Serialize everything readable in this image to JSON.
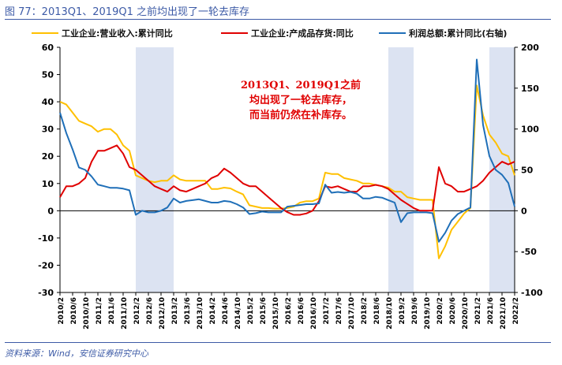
{
  "figure_title": "图 77：2013Q1、2019Q1 之前均出现了一轮去库存",
  "source_note": "资料来源：Wind，安信证券研究中心",
  "colors": {
    "yellow": "#FFC000",
    "red": "#E00000",
    "blue": "#1F6FB8",
    "shade": "#DCE3F2",
    "title": "#3c5aa6"
  },
  "chart_data": {
    "type": "line",
    "annotation": [
      "2013Q1、2019Q1之前",
      "均出现了一轮去库存，",
      "而当前仍然在补库存。"
    ],
    "y_left": {
      "min": -30,
      "max": 60,
      "ticks": [
        "60",
        "50",
        "40",
        "30",
        "20",
        "10",
        "0",
        "-10",
        "-20",
        "-30"
      ]
    },
    "y_right": {
      "min": -100,
      "max": 200,
      "ticks": [
        "200",
        "150",
        "100",
        "50",
        "0",
        "-50",
        "-100"
      ]
    },
    "x_ticks": [
      "2010/2",
      "2010/6",
      "2010/10",
      "2011/2",
      "2011/6",
      "2011/10",
      "2012/2",
      "2012/6",
      "2012/10",
      "2013/2",
      "2013/6",
      "2013/10",
      "2014/2",
      "2014/6",
      "2014/10",
      "2015/2",
      "2015/6",
      "2015/10",
      "2016/2",
      "2016/6",
      "2016/10",
      "2017/2",
      "2017/6",
      "2017/10",
      "2018/2",
      "2018/6",
      "2018/10",
      "2019/2",
      "2019/6",
      "2019/10",
      "2020/2",
      "2020/6",
      "2020/10",
      "2021/2",
      "2021/6",
      "2021/10",
      "2022/2"
    ],
    "shaded_ranges": [
      [
        "2012/2",
        "2013/2"
      ],
      [
        "2018/10",
        "2019/6"
      ],
      [
        "2021/6",
        "2022/2"
      ]
    ],
    "series": [
      {
        "name": "工业企业:营业收入:累计同比",
        "color": "#FFC000",
        "axis": "left",
        "points": [
          [
            "2010/2",
            40
          ],
          [
            "2010/4",
            39
          ],
          [
            "2010/6",
            36
          ],
          [
            "2010/8",
            33
          ],
          [
            "2010/10",
            32
          ],
          [
            "2010/12",
            31
          ],
          [
            "2011/2",
            29
          ],
          [
            "2011/4",
            30
          ],
          [
            "2011/6",
            30
          ],
          [
            "2011/8",
            28
          ],
          [
            "2011/10",
            24
          ],
          [
            "2011/12",
            22
          ],
          [
            "2012/2",
            13
          ],
          [
            "2012/4",
            12
          ],
          [
            "2012/6",
            11
          ],
          [
            "2012/8",
            10.5
          ],
          [
            "2012/10",
            11
          ],
          [
            "2012/12",
            11
          ],
          [
            "2013/2",
            13
          ],
          [
            "2013/4",
            11.5
          ],
          [
            "2013/6",
            11
          ],
          [
            "2013/8",
            11
          ],
          [
            "2013/10",
            11
          ],
          [
            "2013/12",
            11
          ],
          [
            "2014/2",
            8
          ],
          [
            "2014/4",
            8
          ],
          [
            "2014/6",
            8.5
          ],
          [
            "2014/8",
            8.2
          ],
          [
            "2014/10",
            7
          ],
          [
            "2014/12",
            6
          ],
          [
            "2015/2",
            2
          ],
          [
            "2015/4",
            1.5
          ],
          [
            "2015/6",
            1
          ],
          [
            "2015/8",
            1
          ],
          [
            "2015/10",
            0.8
          ],
          [
            "2015/12",
            0.8
          ],
          [
            "2016/2",
            1
          ],
          [
            "2016/4",
            1.5
          ],
          [
            "2016/6",
            3
          ],
          [
            "2016/8",
            3.5
          ],
          [
            "2016/10",
            3.5
          ],
          [
            "2016/12",
            4.5
          ],
          [
            "2017/2",
            14
          ],
          [
            "2017/4",
            13.5
          ],
          [
            "2017/6",
            13.5
          ],
          [
            "2017/8",
            12
          ],
          [
            "2017/10",
            11.5
          ],
          [
            "2017/12",
            11
          ],
          [
            "2018/2",
            10
          ],
          [
            "2018/4",
            10
          ],
          [
            "2018/6",
            9.5
          ],
          [
            "2018/8",
            9
          ],
          [
            "2018/10",
            8.5
          ],
          [
            "2018/12",
            7
          ],
          [
            "2019/2",
            7
          ],
          [
            "2019/4",
            5
          ],
          [
            "2019/6",
            4.5
          ],
          [
            "2019/8",
            4
          ],
          [
            "2019/10",
            4
          ],
          [
            "2019/12",
            4
          ],
          [
            "2020/2",
            -17.5
          ],
          [
            "2020/4",
            -13
          ],
          [
            "2020/6",
            -7
          ],
          [
            "2020/8",
            -4
          ],
          [
            "2020/10",
            -1
          ],
          [
            "2020/12",
            1
          ],
          [
            "2021/2",
            46
          ],
          [
            "2021/4",
            35
          ],
          [
            "2021/6",
            28
          ],
          [
            "2021/8",
            25
          ],
          [
            "2021/10",
            21
          ],
          [
            "2021/12",
            20
          ],
          [
            "2022/2",
            13
          ]
        ]
      },
      {
        "name": "工业企业:产成品存货:同比",
        "color": "#E00000",
        "axis": "left",
        "points": [
          [
            "2010/2",
            5
          ],
          [
            "2010/4",
            9
          ],
          [
            "2010/6",
            9
          ],
          [
            "2010/8",
            10
          ],
          [
            "2010/10",
            12
          ],
          [
            "2010/12",
            18
          ],
          [
            "2011/2",
            22
          ],
          [
            "2011/4",
            22
          ],
          [
            "2011/6",
            23
          ],
          [
            "2011/8",
            24
          ],
          [
            "2011/10",
            21
          ],
          [
            "2011/12",
            16
          ],
          [
            "2012/2",
            15
          ],
          [
            "2012/4",
            13
          ],
          [
            "2012/6",
            11
          ],
          [
            "2012/8",
            9
          ],
          [
            "2012/10",
            8
          ],
          [
            "2012/12",
            7
          ],
          [
            "2013/2",
            9
          ],
          [
            "2013/4",
            7.5
          ],
          [
            "2013/6",
            7
          ],
          [
            "2013/8",
            8
          ],
          [
            "2013/10",
            9
          ],
          [
            "2013/12",
            10
          ],
          [
            "2014/2",
            12
          ],
          [
            "2014/4",
            13
          ],
          [
            "2014/6",
            15.5
          ],
          [
            "2014/8",
            14
          ],
          [
            "2014/10",
            12
          ],
          [
            "2014/12",
            10
          ],
          [
            "2015/2",
            9
          ],
          [
            "2015/4",
            9
          ],
          [
            "2015/6",
            7
          ],
          [
            "2015/8",
            5
          ],
          [
            "2015/10",
            3
          ],
          [
            "2015/12",
            1
          ],
          [
            "2016/2",
            -0.5
          ],
          [
            "2016/4",
            -1.5
          ],
          [
            "2016/6",
            -1.5
          ],
          [
            "2016/8",
            -1
          ],
          [
            "2016/10",
            0
          ],
          [
            "2016/12",
            3.5
          ],
          [
            "2017/2",
            9
          ],
          [
            "2017/4",
            8.5
          ],
          [
            "2017/6",
            9
          ],
          [
            "2017/8",
            8
          ],
          [
            "2017/10",
            7
          ],
          [
            "2017/12",
            7
          ],
          [
            "2018/2",
            9
          ],
          [
            "2018/4",
            9
          ],
          [
            "2018/6",
            9.5
          ],
          [
            "2018/8",
            9
          ],
          [
            "2018/10",
            8
          ],
          [
            "2018/12",
            6
          ],
          [
            "2019/2",
            4
          ],
          [
            "2019/4",
            2.5
          ],
          [
            "2019/6",
            1
          ],
          [
            "2019/8",
            0
          ],
          [
            "2019/10",
            0
          ],
          [
            "2019/12",
            0
          ],
          [
            "2020/2",
            16
          ],
          [
            "2020/4",
            10
          ],
          [
            "2020/6",
            9
          ],
          [
            "2020/8",
            7
          ],
          [
            "2020/10",
            7
          ],
          [
            "2020/12",
            8
          ],
          [
            "2021/2",
            9
          ],
          [
            "2021/4",
            11
          ],
          [
            "2021/6",
            14
          ],
          [
            "2021/8",
            16
          ],
          [
            "2021/10",
            18
          ],
          [
            "2021/12",
            17
          ],
          [
            "2022/2",
            18
          ]
        ]
      },
      {
        "name": "利润总额:累计同比(右轴)",
        "color": "#1F6FB8",
        "axis": "right",
        "points": [
          [
            "2010/2",
            120
          ],
          [
            "2010/4",
            95
          ],
          [
            "2010/6",
            75
          ],
          [
            "2010/8",
            53
          ],
          [
            "2010/10",
            50
          ],
          [
            "2010/12",
            42
          ],
          [
            "2011/2",
            32
          ],
          [
            "2011/4",
            30
          ],
          [
            "2011/6",
            28
          ],
          [
            "2011/8",
            28
          ],
          [
            "2011/10",
            27
          ],
          [
            "2011/12",
            25
          ],
          [
            "2012/2",
            -5
          ],
          [
            "2012/4",
            0
          ],
          [
            "2012/6",
            -2
          ],
          [
            "2012/8",
            -2
          ],
          [
            "2012/10",
            0
          ],
          [
            "2012/12",
            4
          ],
          [
            "2013/2",
            15
          ],
          [
            "2013/4",
            10
          ],
          [
            "2013/6",
            12
          ],
          [
            "2013/8",
            13
          ],
          [
            "2013/10",
            14
          ],
          [
            "2013/12",
            12
          ],
          [
            "2014/2",
            10
          ],
          [
            "2014/4",
            10
          ],
          [
            "2014/6",
            12
          ],
          [
            "2014/8",
            11
          ],
          [
            "2014/10",
            8
          ],
          [
            "2014/12",
            4
          ],
          [
            "2015/2",
            -4
          ],
          [
            "2015/4",
            -3
          ],
          [
            "2015/6",
            -1
          ],
          [
            "2015/8",
            -2
          ],
          [
            "2015/10",
            -2
          ],
          [
            "2015/12",
            -2
          ],
          [
            "2016/2",
            5
          ],
          [
            "2016/4",
            6
          ],
          [
            "2016/6",
            7
          ],
          [
            "2016/8",
            8
          ],
          [
            "2016/10",
            8
          ],
          [
            "2016/12",
            9
          ],
          [
            "2017/2",
            32
          ],
          [
            "2017/4",
            22
          ],
          [
            "2017/6",
            23
          ],
          [
            "2017/8",
            22
          ],
          [
            "2017/10",
            23
          ],
          [
            "2017/12",
            21
          ],
          [
            "2018/2",
            15
          ],
          [
            "2018/4",
            15
          ],
          [
            "2018/6",
            17
          ],
          [
            "2018/8",
            16
          ],
          [
            "2018/10",
            13
          ],
          [
            "2018/12",
            10
          ],
          [
            "2019/2",
            -14
          ],
          [
            "2019/4",
            -3
          ],
          [
            "2019/6",
            -2
          ],
          [
            "2019/8",
            -2
          ],
          [
            "2019/10",
            -2
          ],
          [
            "2019/12",
            -3
          ],
          [
            "2020/2",
            -38
          ],
          [
            "2020/4",
            -27
          ],
          [
            "2020/6",
            -12
          ],
          [
            "2020/8",
            -4
          ],
          [
            "2020/10",
            0
          ],
          [
            "2020/12",
            4
          ],
          [
            "2021/2",
            185
          ],
          [
            "2021/4",
            105
          ],
          [
            "2021/6",
            67
          ],
          [
            "2021/8",
            50
          ],
          [
            "2021/10",
            44
          ],
          [
            "2021/12",
            34
          ],
          [
            "2022/2",
            5
          ]
        ]
      }
    ]
  }
}
